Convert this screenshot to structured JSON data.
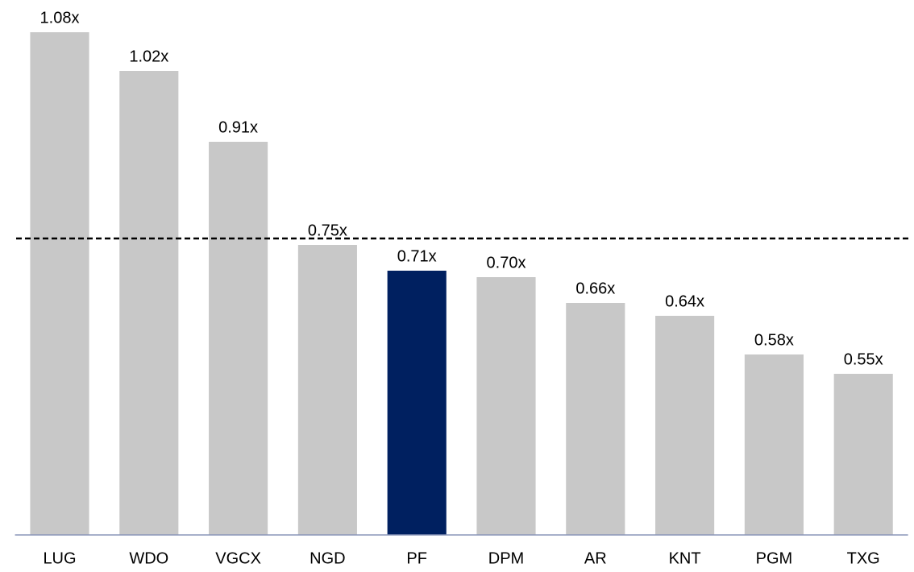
{
  "chart_data": {
    "type": "bar",
    "categories": [
      "LUG",
      "WDO",
      "VGCX",
      "NGD",
      "PF",
      "DPM",
      "AR",
      "KNT",
      "PGM",
      "TXG"
    ],
    "values": [
      1.08,
      1.02,
      0.91,
      0.75,
      0.71,
      0.7,
      0.66,
      0.64,
      0.58,
      0.55
    ],
    "value_labels": [
      "1.08x",
      "1.02x",
      "0.91x",
      "0.75x",
      "0.71x",
      "0.70x",
      "0.66x",
      "0.64x",
      "0.58x",
      "0.55x"
    ],
    "colors": [
      "#c8c8c8",
      "#c8c8c8",
      "#c8c8c8",
      "#c8c8c8",
      "#002060",
      "#c8c8c8",
      "#c8c8c8",
      "#c8c8c8",
      "#c8c8c8",
      "#c8c8c8"
    ],
    "ylim": [
      0.3,
      1.13
    ],
    "reference_line": 0.76
  }
}
